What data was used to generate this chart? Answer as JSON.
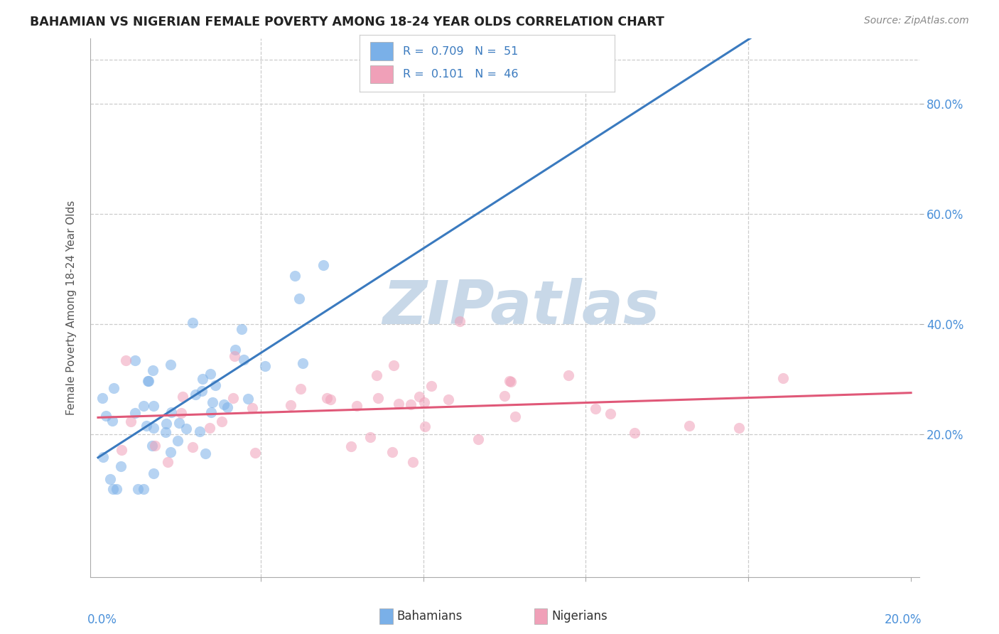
{
  "title": "BAHAMIAN VS NIGERIAN FEMALE POVERTY AMONG 18-24 YEAR OLDS CORRELATION CHART",
  "source": "Source: ZipAtlas.com",
  "ylabel": "Female Poverty Among 18-24 Year Olds",
  "watermark_text": "ZIPatlas",
  "watermark_color": "#c8d8e8",
  "bahamian_color": "#7ab0e8",
  "nigerian_color": "#f0a0b8",
  "bahamian_line_color": "#3a7abf",
  "nigerian_line_color": "#e05878",
  "background_color": "#ffffff",
  "grid_color": "#cccccc",
  "bahamian_R": 0.709,
  "bahamian_N": 51,
  "nigerian_R": 0.101,
  "nigerian_N": 46,
  "xlim": [
    -0.002,
    0.202
  ],
  "ylim": [
    -0.06,
    0.92
  ],
  "right_ytick_vals": [
    0.2,
    0.4,
    0.6,
    0.8
  ],
  "right_yticklabels": [
    "20.0%",
    "40.0%",
    "60.0%",
    "80.0%"
  ],
  "legend_r1": "R =  0.709   N =  51",
  "legend_r2": "R =  0.101   N =  46",
  "legend_label1": "Bahamians",
  "legend_label2": "Nigerians",
  "title_color": "#222222",
  "source_color": "#888888",
  "axis_label_color": "#4a90d9",
  "ylabel_color": "#555555"
}
